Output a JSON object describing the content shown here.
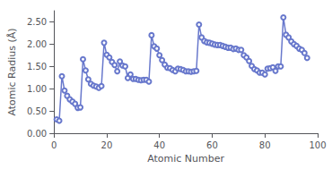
{
  "chart_data": {
    "type": "line",
    "xlabel": "Atomic Number",
    "ylabel": "Atomic Radius (Å)",
    "x": [
      1,
      2,
      3,
      4,
      5,
      6,
      7,
      8,
      9,
      10,
      11,
      12,
      13,
      14,
      15,
      16,
      17,
      18,
      19,
      20,
      21,
      22,
      23,
      24,
      25,
      26,
      27,
      28,
      29,
      30,
      31,
      32,
      33,
      34,
      35,
      36,
      37,
      38,
      39,
      40,
      41,
      42,
      43,
      44,
      45,
      46,
      47,
      48,
      49,
      50,
      51,
      52,
      53,
      54,
      55,
      56,
      57,
      58,
      59,
      60,
      61,
      62,
      63,
      64,
      65,
      66,
      67,
      68,
      69,
      70,
      71,
      72,
      73,
      74,
      75,
      76,
      77,
      78,
      79,
      80,
      81,
      82,
      83,
      84,
      85,
      86,
      87,
      88,
      89,
      90,
      91,
      92,
      93,
      94,
      95,
      96
    ],
    "values": [
      0.31,
      0.28,
      1.28,
      0.96,
      0.84,
      0.76,
      0.71,
      0.66,
      0.57,
      0.58,
      1.66,
      1.41,
      1.21,
      1.11,
      1.07,
      1.05,
      1.02,
      1.06,
      2.03,
      1.76,
      1.7,
      1.6,
      1.53,
      1.39,
      1.61,
      1.52,
      1.5,
      1.24,
      1.32,
      1.22,
      1.22,
      1.2,
      1.19,
      1.2,
      1.2,
      1.16,
      2.2,
      1.95,
      1.9,
      1.75,
      1.64,
      1.54,
      1.47,
      1.46,
      1.42,
      1.39,
      1.45,
      1.44,
      1.42,
      1.39,
      1.39,
      1.38,
      1.39,
      1.4,
      2.44,
      2.15,
      2.07,
      2.04,
      2.03,
      2.01,
      1.99,
      1.98,
      1.98,
      1.96,
      1.94,
      1.92,
      1.92,
      1.89,
      1.9,
      1.87,
      1.87,
      1.75,
      1.7,
      1.62,
      1.51,
      1.44,
      1.41,
      1.36,
      1.36,
      1.32,
      1.45,
      1.46,
      1.48,
      1.4,
      1.5,
      1.5,
      2.6,
      2.21,
      2.15,
      2.06,
      2.0,
      1.96,
      1.9,
      1.87,
      1.8,
      1.69
    ],
    "color": "#6878cc",
    "marker": "o",
    "xlim": [
      0,
      100
    ],
    "ylim": [
      0.0,
      2.75
    ],
    "xticks": [
      0,
      20,
      40,
      60,
      80,
      100
    ],
    "yticks": [
      {
        "value": 0.0,
        "label": "0.00"
      },
      {
        "value": 0.5,
        "label": "0.50"
      },
      {
        "value": 1.0,
        "label": "1.00"
      },
      {
        "value": 1.5,
        "label": "1.50"
      },
      {
        "value": 2.0,
        "label": "2.00"
      },
      {
        "value": 2.5,
        "label": "2.50"
      }
    ],
    "grid": false
  }
}
